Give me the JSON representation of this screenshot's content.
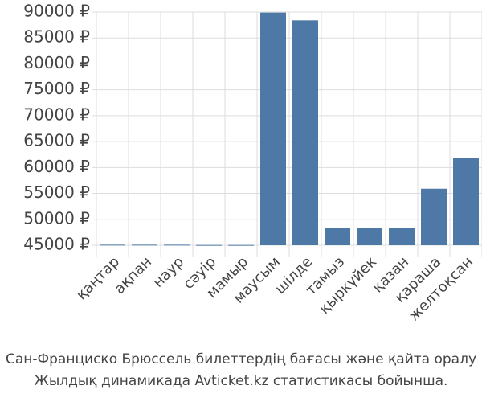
{
  "chart_data": {
    "type": "bar",
    "title": "Сан-Франциско Брюссель билеттердің бағасы және қайта оралу",
    "subtitle": "Жылдық динамикада Avticket.kz статистикасы бойынша.",
    "categories": [
      "қаңтар",
      "ақпан",
      "наур",
      "сәуір",
      "мамыр",
      "маусым",
      "шілде",
      "тамыз",
      "қыркүйек",
      "қазан",
      "қараша",
      "желтоқсан"
    ],
    "values": [
      45100,
      45100,
      45100,
      45050,
      45050,
      89900,
      88400,
      48400,
      48400,
      48400,
      55900,
      61800
    ],
    "color": "#4e79a7",
    "ylim": [
      45000,
      90000
    ],
    "yticks": [
      {
        "value": 45000,
        "label": "45000 ₽"
      },
      {
        "value": 50000,
        "label": "50000 ₽"
      },
      {
        "value": 55000,
        "label": "55000 ₽"
      },
      {
        "value": 60000,
        "label": "60000 ₽"
      },
      {
        "value": 65000,
        "label": "65000 ₽"
      },
      {
        "value": 70000,
        "label": "70000 ₽"
      },
      {
        "value": 75000,
        "label": "75000 ₽"
      },
      {
        "value": 80000,
        "label": "80000 ₽"
      },
      {
        "value": 85000,
        "label": "85000 ₽"
      },
      {
        "value": 90000,
        "label": "90000 ₽"
      }
    ],
    "grid": true
  }
}
